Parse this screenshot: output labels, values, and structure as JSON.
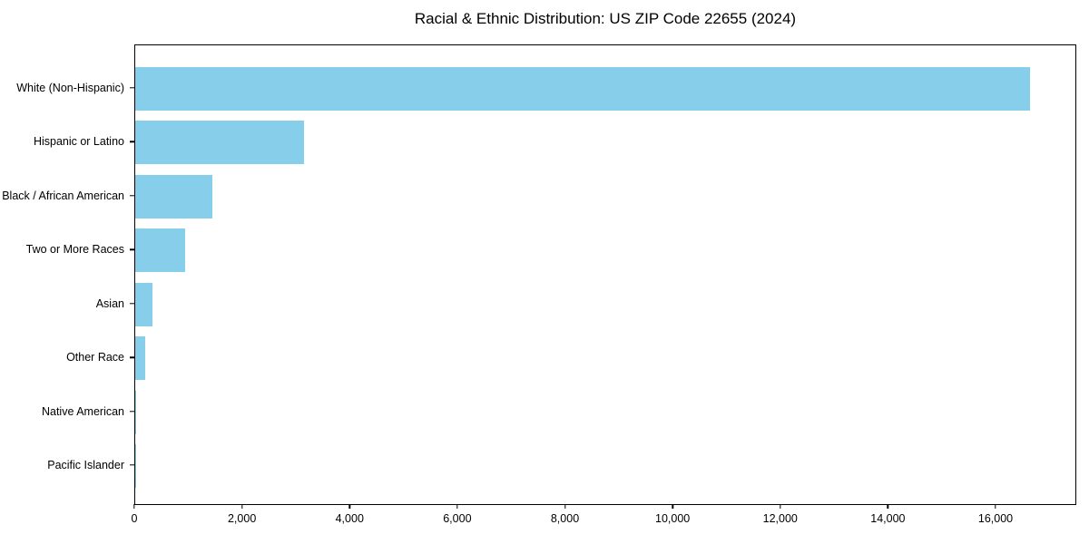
{
  "title": "Racial & Ethnic Distribution: US ZIP Code 22655 (2024)",
  "colors": {
    "bar": "#87CEEB",
    "axis": "#000000",
    "background": "#FFFFFF",
    "text": "#000000"
  },
  "chart_data": {
    "type": "bar",
    "orientation": "horizontal",
    "title": "Racial & Ethnic Distribution: US ZIP Code 22655 (2024)",
    "categories": [
      "White (Non-Hispanic)",
      "Hispanic or Latino",
      "Black / African American",
      "Two or More Races",
      "Asian",
      "Other Race",
      "Native American",
      "Pacific Islander"
    ],
    "values": [
      16650,
      3150,
      1430,
      925,
      320,
      185,
      20,
      8
    ],
    "xlabel": "",
    "ylabel": "",
    "xlim": [
      0,
      17500
    ],
    "xticks": [
      0,
      2000,
      4000,
      6000,
      8000,
      10000,
      12000,
      14000,
      16000
    ],
    "xtick_labels": [
      "0",
      "2,000",
      "4,000",
      "6,000",
      "8,000",
      "10,000",
      "12,000",
      "14,000",
      "16,000"
    ],
    "bar_color": "#87CEEB",
    "grid": false,
    "legend": null
  }
}
